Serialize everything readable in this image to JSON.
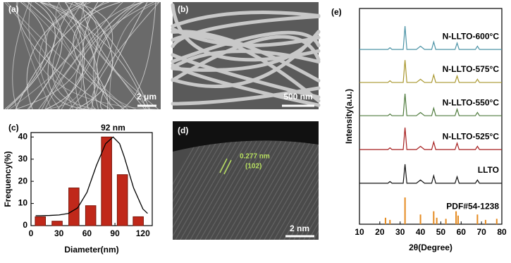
{
  "panels": [
    {
      "label": "(a)",
      "scale_bar": "2 μm"
    },
    {
      "label": "(b)",
      "scale_bar": "500 nm"
    },
    {
      "label": "(d)",
      "scale_bar": "2 nm",
      "spacing": "0.277 nm",
      "plane": "(102)"
    }
  ],
  "chart_data": [
    {
      "type": "bar",
      "panel_label": "(c)",
      "annotation": "92 nm",
      "xlabel": "Diameter(nm)",
      "ylabel": "Frequency(%)",
      "x": [
        10,
        28,
        46,
        64,
        81,
        98,
        115
      ],
      "values": [
        4,
        2,
        17,
        9,
        40,
        23,
        4
      ],
      "color": "#c0281a",
      "fit": {
        "x": [
          5,
          10,
          20,
          30,
          40,
          50,
          60,
          70,
          80,
          88,
          95,
          100,
          110,
          120,
          125
        ],
        "values": [
          4.5,
          4.5,
          4.6,
          4.8,
          5.5,
          8,
          15,
          27,
          37,
          40,
          37,
          31,
          17,
          7.5,
          5.5
        ],
        "color": "#000000"
      },
      "xlim": [
        0,
        130
      ],
      "xticks": [
        0,
        30,
        60,
        90,
        120
      ],
      "ylim": [
        0,
        42
      ],
      "yticks": [
        0,
        10,
        20,
        30,
        40
      ]
    },
    {
      "type": "line",
      "panel_label": "(e)",
      "xlabel": "2θ(Degree)",
      "ylabel": "Intensity(a.u.)",
      "x": [
        10,
        22,
        24,
        25,
        26,
        28,
        31.5,
        32.4,
        33.3,
        38,
        40,
        42,
        45.5,
        46.5,
        47.5,
        50,
        52,
        57,
        58,
        59,
        62,
        67,
        68,
        69,
        75,
        80
      ],
      "series": [
        {
          "name": "LLTO",
          "color": "#111111",
          "values": [
            19,
            19,
            19,
            19.8,
            19,
            19,
            19,
            27.8,
            19,
            19,
            20.5,
            19,
            19,
            22.5,
            19,
            19,
            19,
            19,
            22,
            19,
            19,
            19,
            20.5,
            19,
            19,
            19
          ]
        },
        {
          "name": "N-LLTO-525°C",
          "color": "#a61e1e",
          "values": [
            34.6,
            34.6,
            34.6,
            35.4,
            34.6,
            34.6,
            34.6,
            44.8,
            34.6,
            34.6,
            36.1,
            34.6,
            34.6,
            38.1,
            34.6,
            34.6,
            34.6,
            34.6,
            37.6,
            34.6,
            34.6,
            34.6,
            36.1,
            34.6,
            34.6,
            34.6
          ]
        },
        {
          "name": "N-LLTO-550°C",
          "color": "#4e7a3c",
          "values": [
            50.3,
            50.3,
            50.3,
            51.1,
            50.3,
            50.3,
            50.3,
            60.5,
            50.3,
            50.3,
            51.8,
            50.3,
            50.3,
            53.8,
            50.3,
            50.3,
            50.3,
            50.3,
            53.3,
            50.3,
            50.3,
            50.3,
            51.8,
            50.3,
            50.3,
            50.3
          ]
        },
        {
          "name": "N-LLTO-575°C",
          "color": "#a8962c",
          "values": [
            65.7,
            65.7,
            65.7,
            66.5,
            65.7,
            65.7,
            65.7,
            76.1,
            65.7,
            65.7,
            67.2,
            65.7,
            65.7,
            69.2,
            65.7,
            65.7,
            65.7,
            65.7,
            68.7,
            65.7,
            65.7,
            65.7,
            67.2,
            65.7,
            65.7,
            65.7
          ]
        },
        {
          "name": "N-LLTO-600°C",
          "color": "#4b93a6",
          "values": [
            81,
            81,
            81,
            81.8,
            81,
            81,
            81,
            91.8,
            81,
            81,
            82.5,
            81,
            81,
            84.5,
            81,
            81,
            81,
            81,
            84,
            81,
            81,
            81,
            82.5,
            81,
            81,
            81
          ]
        }
      ],
      "reference": {
        "name": "PDF#54-1238",
        "color": "#e58a1f",
        "x": [
          22.8,
          25,
          32.4,
          40,
          46.5,
          48,
          52.5,
          57.5,
          58.5,
          68,
          72,
          77.5
        ],
        "values": [
          3,
          2,
          12.4,
          4.5,
          6,
          3,
          2.5,
          6,
          4,
          4.5,
          2,
          2.5
        ]
      },
      "xlim": [
        10,
        80
      ],
      "xticks": [
        10,
        20,
        30,
        40,
        50,
        60,
        70,
        80
      ],
      "ylim": [
        0,
        100
      ]
    }
  ]
}
